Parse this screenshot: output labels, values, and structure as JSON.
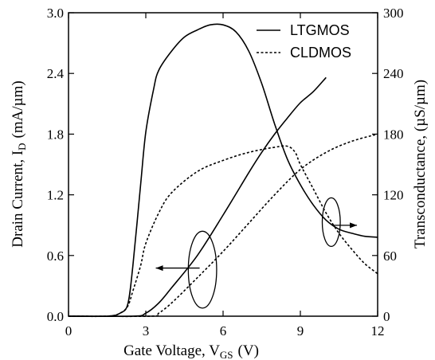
{
  "chart_data": {
    "type": "line",
    "xlabel": "Gate Voltage, V",
    "xlabel_sub": "GS",
    "xlabel_unit": "(V)",
    "ylabel_left": "Drain Current,  I",
    "ylabel_left_sub": "D",
    "ylabel_left_unit": "(mA/µm)",
    "ylabel_right": "Transconductance,  (µS/µm)",
    "xlim": [
      0,
      12
    ],
    "ylim_left": [
      0,
      3.0
    ],
    "ylim_right": [
      0,
      300
    ],
    "x_ticks": [
      "0",
      "3",
      "6",
      "9",
      "12"
    ],
    "y_ticks_left": [
      "0.0",
      "0.6",
      "1.2",
      "1.8",
      "2.4",
      "3.0"
    ],
    "y_ticks_right": [
      "0",
      "60",
      "120",
      "180",
      "240",
      "300"
    ],
    "grid": false,
    "legend_position": "top-right",
    "series": [
      {
        "name": "LTGMOS",
        "style": "solid",
        "axis": "right",
        "x": [
          0,
          1.5,
          2.0,
          2.3,
          2.5,
          2.8,
          3.0,
          3.3,
          3.5,
          4.0,
          4.5,
          5.0,
          5.5,
          6.0,
          6.5,
          7.0,
          7.5,
          8.0,
          8.5,
          9.0,
          9.5,
          10.0,
          10.5,
          11.0,
          11.5,
          12.0
        ],
        "values": [
          0,
          0,
          3,
          12,
          50,
          130,
          182,
          224,
          243,
          262,
          276,
          283,
          288,
          288,
          281,
          262,
          230,
          190,
          155,
          130,
          110,
          95,
          86,
          82,
          79,
          78
        ]
      },
      {
        "name": "LTGMOS",
        "style": "solid",
        "axis": "left",
        "x": [
          0,
          2.5,
          3.0,
          3.5,
          4.0,
          5.0,
          6.0,
          7.0,
          7.5,
          8.0,
          8.5,
          9.0,
          9.5,
          10.0
        ],
        "values": [
          0,
          0,
          0.03,
          0.13,
          0.28,
          0.6,
          1.0,
          1.42,
          1.62,
          1.8,
          1.96,
          2.11,
          2.22,
          2.36
        ]
      },
      {
        "name": "CLDMOS",
        "style": "dashed",
        "axis": "right",
        "x": [
          0,
          1.5,
          2.0,
          2.3,
          2.5,
          2.8,
          3.0,
          3.5,
          4.0,
          5.0,
          6.0,
          7.0,
          8.0,
          8.5,
          8.8,
          9.0,
          9.5,
          10.0,
          10.5,
          11.0,
          11.5,
          12.0
        ],
        "values": [
          0,
          0,
          3,
          10,
          25,
          50,
          72,
          102,
          122,
          143,
          154,
          162,
          167,
          168,
          162,
          150,
          126,
          102,
          82,
          66,
          52,
          42
        ]
      },
      {
        "name": "CLDMOS",
        "style": "dashed",
        "axis": "left",
        "x": [
          0,
          3.2,
          3.5,
          4.0,
          5.0,
          6.0,
          7.0,
          8.0,
          9.0,
          10.0,
          11.0,
          12.0
        ],
        "values": [
          0,
          0,
          0.03,
          0.13,
          0.38,
          0.64,
          0.92,
          1.2,
          1.45,
          1.62,
          1.73,
          1.8
        ]
      }
    ],
    "annotations": [
      {
        "kind": "ellipse-arrow",
        "points_to": "left-axis",
        "cx": 5.2,
        "cy": 0.46,
        "rx": 0.55,
        "ry": 0.38
      },
      {
        "kind": "ellipse-arrow",
        "points_to": "right-axis",
        "cx": 10.2,
        "cy": 0.93,
        "rx": 0.35,
        "ry": 0.24
      }
    ]
  }
}
